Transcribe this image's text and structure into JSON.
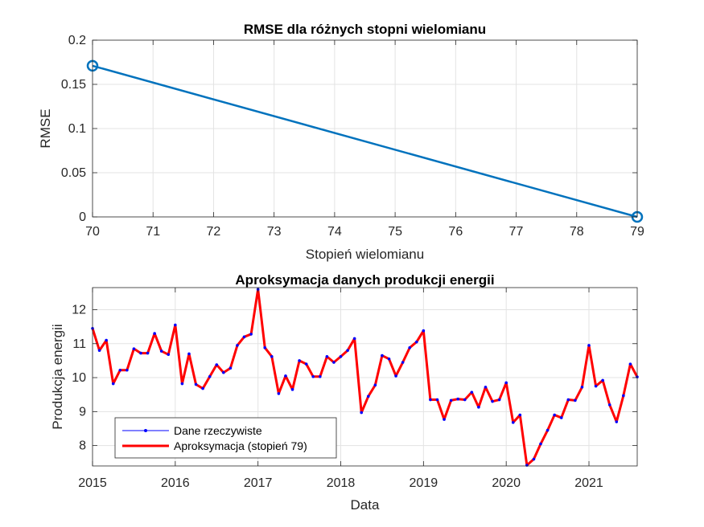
{
  "chart_data": [
    {
      "type": "line",
      "title": "RMSE dla różnych stopni wielomianu",
      "xlabel": "Stopień wielomianu",
      "ylabel": "RMSE",
      "xlim": [
        70,
        79
      ],
      "ylim": [
        0,
        0.2
      ],
      "xticks": [
        70,
        71,
        72,
        73,
        74,
        75,
        76,
        77,
        78,
        79
      ],
      "xticklabels": [
        "70",
        "71",
        "72",
        "73",
        "74",
        "75",
        "76",
        "77",
        "78",
        "79"
      ],
      "yticks": [
        0,
        0.05,
        0.1,
        0.15,
        0.2
      ],
      "yticklabels": [
        "0",
        "0.05",
        "0.1",
        "0.15",
        "0.2"
      ],
      "grid": true,
      "series": [
        {
          "x": [
            70,
            79
          ],
          "y": [
            0.171,
            0.0
          ],
          "color": "#0072BD",
          "marker": "circle"
        }
      ]
    },
    {
      "type": "line",
      "title": "Aproksymacja danych produkcji energii",
      "xlabel": "Data",
      "ylabel": "Produkcja energii",
      "xlim": [
        "2015-01",
        "2021-08"
      ],
      "ylim": [
        7.4,
        12.65
      ],
      "xticks": [
        "2015-01",
        "2016-01",
        "2017-01",
        "2018-01",
        "2019-01",
        "2020-01",
        "2021-01"
      ],
      "xticklabels": [
        "2015",
        "2016",
        "2017",
        "2018",
        "2019",
        "2020",
        "2021"
      ],
      "yticks": [
        8,
        9,
        10,
        11,
        12
      ],
      "yticklabels": [
        "8",
        "9",
        "10",
        "11",
        "12"
      ],
      "grid": true,
      "legend_position": "bottom-left",
      "x": [
        "2015-01",
        "2015-02",
        "2015-03",
        "2015-04",
        "2015-05",
        "2015-06",
        "2015-07",
        "2015-08",
        "2015-09",
        "2015-10",
        "2015-11",
        "2015-12",
        "2016-01",
        "2016-02",
        "2016-03",
        "2016-04",
        "2016-05",
        "2016-06",
        "2016-07",
        "2016-08",
        "2016-09",
        "2016-10",
        "2016-11",
        "2016-12",
        "2017-01",
        "2017-02",
        "2017-03",
        "2017-04",
        "2017-05",
        "2017-06",
        "2017-07",
        "2017-08",
        "2017-09",
        "2017-10",
        "2017-11",
        "2017-12",
        "2018-01",
        "2018-02",
        "2018-03",
        "2018-04",
        "2018-05",
        "2018-06",
        "2018-07",
        "2018-08",
        "2018-09",
        "2018-10",
        "2018-11",
        "2018-12",
        "2019-01",
        "2019-02",
        "2019-03",
        "2019-04",
        "2019-05",
        "2019-06",
        "2019-07",
        "2019-08",
        "2019-09",
        "2019-10",
        "2019-11",
        "2019-12",
        "2020-01",
        "2020-02",
        "2020-03",
        "2020-04",
        "2020-05",
        "2020-06",
        "2020-07",
        "2020-08",
        "2020-09",
        "2020-10",
        "2020-11",
        "2020-12",
        "2021-01",
        "2021-02",
        "2021-03",
        "2021-04",
        "2021-05",
        "2021-06",
        "2021-07",
        "2021-08"
      ],
      "series": [
        {
          "name": "Dane rzeczywiste",
          "color": "#0000FF",
          "marker": "dot",
          "values": [
            11.45,
            10.8,
            11.1,
            9.82,
            10.22,
            10.22,
            10.85,
            10.72,
            10.72,
            11.3,
            10.78,
            10.68,
            11.55,
            9.82,
            10.7,
            9.8,
            9.68,
            10.03,
            10.38,
            10.15,
            10.28,
            10.95,
            11.2,
            11.28,
            12.6,
            10.88,
            10.62,
            9.53,
            10.05,
            9.65,
            10.5,
            10.4,
            10.03,
            10.03,
            10.62,
            10.45,
            10.62,
            10.8,
            11.15,
            8.97,
            9.45,
            9.78,
            10.65,
            10.55,
            10.05,
            10.45,
            10.88,
            11.05,
            11.38,
            9.35,
            9.35,
            8.77,
            9.33,
            9.37,
            9.35,
            9.57,
            9.13,
            9.72,
            9.3,
            9.35,
            9.85,
            8.68,
            8.9,
            7.42,
            7.6,
            8.05,
            8.45,
            8.9,
            8.82,
            9.35,
            9.33,
            9.72,
            10.95,
            9.75,
            9.92,
            9.2,
            8.7,
            9.47,
            10.4,
            10.02
          ]
        },
        {
          "name": "Aproksymacja (stopień 79)",
          "color": "#FF0000",
          "values": [
            11.45,
            10.8,
            11.1,
            9.82,
            10.22,
            10.22,
            10.85,
            10.72,
            10.72,
            11.3,
            10.78,
            10.68,
            11.55,
            9.82,
            10.7,
            9.8,
            9.68,
            10.03,
            10.38,
            10.15,
            10.28,
            10.95,
            11.2,
            11.28,
            12.6,
            10.88,
            10.62,
            9.53,
            10.05,
            9.65,
            10.5,
            10.4,
            10.03,
            10.03,
            10.62,
            10.45,
            10.62,
            10.8,
            11.15,
            8.97,
            9.45,
            9.78,
            10.65,
            10.55,
            10.05,
            10.45,
            10.88,
            11.05,
            11.38,
            9.35,
            9.35,
            8.77,
            9.33,
            9.37,
            9.35,
            9.57,
            9.13,
            9.72,
            9.3,
            9.35,
            9.85,
            8.68,
            8.9,
            7.42,
            7.6,
            8.05,
            8.45,
            8.9,
            8.82,
            9.35,
            9.33,
            9.72,
            10.95,
            9.75,
            9.92,
            9.2,
            8.7,
            9.47,
            10.4,
            10.02
          ]
        }
      ]
    }
  ]
}
